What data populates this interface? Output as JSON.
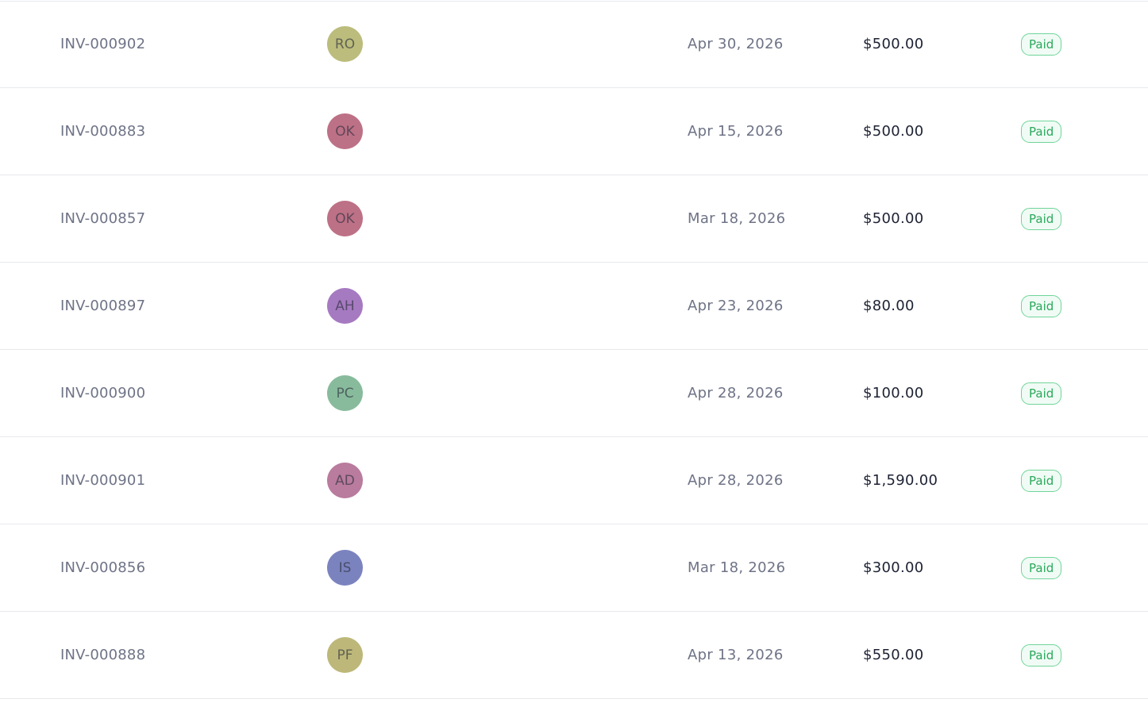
{
  "invoices": [
    {
      "number": "INV-000902",
      "initials": "RO",
      "avatar_color": "#bcbc7c",
      "date": "Apr 30, 2026",
      "amount": "$500.00",
      "status": "Paid"
    },
    {
      "number": "INV-000883",
      "initials": "OK",
      "avatar_color": "#bd7186",
      "date": "Apr 15, 2026",
      "amount": "$500.00",
      "status": "Paid"
    },
    {
      "number": "INV-000857",
      "initials": "OK",
      "avatar_color": "#bd7186",
      "date": "Mar 18, 2026",
      "amount": "$500.00",
      "status": "Paid"
    },
    {
      "number": "INV-000897",
      "initials": "AH",
      "avatar_color": "#a67ac1",
      "date": "Apr 23, 2026",
      "amount": "$80.00",
      "status": "Paid"
    },
    {
      "number": "INV-000900",
      "initials": "PC",
      "avatar_color": "#88bb9c",
      "date": "Apr 28, 2026",
      "amount": "$100.00",
      "status": "Paid"
    },
    {
      "number": "INV-000901",
      "initials": "AD",
      "avatar_color": "#b97b9e",
      "date": "Apr 28, 2026",
      "amount": "$1,590.00",
      "status": "Paid"
    },
    {
      "number": "INV-000856",
      "initials": "IS",
      "avatar_color": "#7b83bf",
      "date": "Mar 18, 2026",
      "amount": "$300.00",
      "status": "Paid"
    },
    {
      "number": "INV-000888",
      "initials": "PF",
      "avatar_color": "#bdb879",
      "date": "Apr 13, 2026",
      "amount": "$550.00",
      "status": "Paid"
    }
  ],
  "colors": {
    "status_paid_text": "#2aa95c",
    "status_paid_border": "#6fd59a",
    "status_paid_bg": "#f1fbf5",
    "row_divider": "#e8e9ee"
  }
}
